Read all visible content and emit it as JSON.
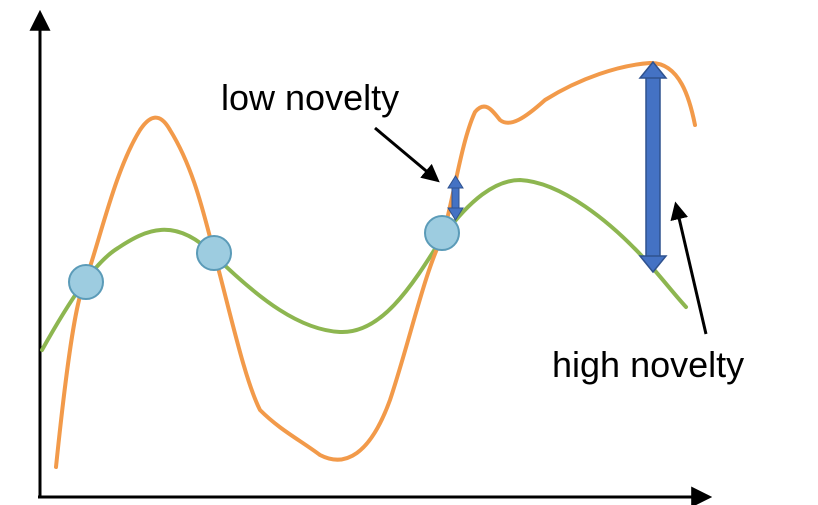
{
  "labels": {
    "low_novelty": "low novelty",
    "high_novelty": "high novelty"
  },
  "colors": {
    "axis": "#000000",
    "orange_curve": "#F29A4A",
    "green_curve": "#8DB650",
    "sample_point_fill": "#9DCCE0",
    "sample_point_stroke": "#5B9BB8",
    "gap_arrow_fill": "#4472C4",
    "gap_arrow_stroke": "#2F528F",
    "pointer_arrow": "#000000",
    "background": "#FFFFFF"
  },
  "sample_points": 3
}
